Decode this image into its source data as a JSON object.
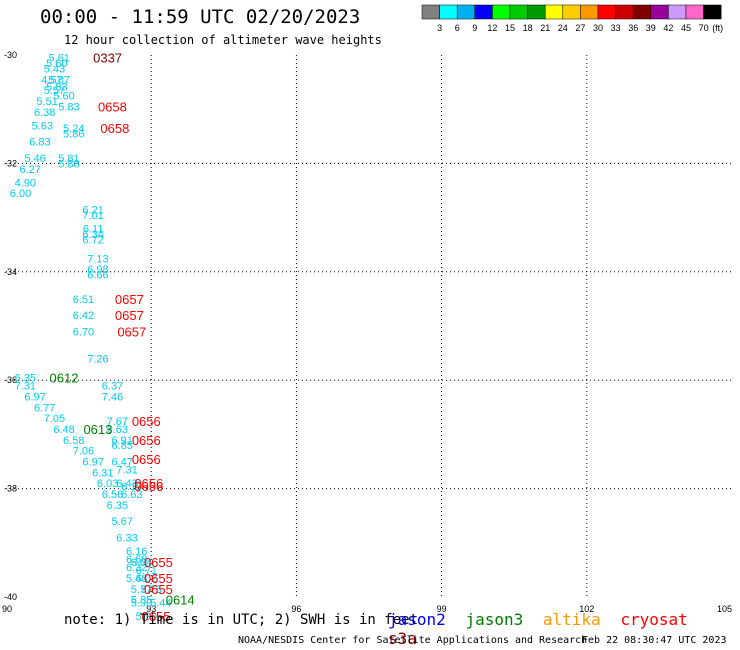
{
  "header": {
    "title": "00:00 - 11:59 UTC 02/20/2023",
    "subtitle": "12 hour collection of altimeter wave heights"
  },
  "colorbar": {
    "ticks": [
      "3",
      "6",
      "9",
      "12",
      "15",
      "18",
      "21",
      "24",
      "27",
      "30",
      "33",
      "36",
      "39",
      "42",
      "45",
      "70"
    ],
    "unit": "(ft)",
    "colors": [
      "#808080",
      "#00ffff",
      "#00b0f0",
      "#0000ff",
      "#00ff00",
      "#00cc00",
      "#009900",
      "#ffff00",
      "#ffcc00",
      "#ff9900",
      "#ff0000",
      "#cc0000",
      "#800000",
      "#990099",
      "#cc99ff",
      "#ff66cc",
      "#000000"
    ]
  },
  "footer": {
    "note": "note: 1) Time is in UTC; 2) SWH is in feet",
    "legend": [
      {
        "name": "jason2",
        "color": "#0000ff"
      },
      {
        "name": "jason3",
        "color": "#008000"
      },
      {
        "name": "altika",
        "color": "#ff9900"
      },
      {
        "name": "cryosat",
        "color": "#ff0000"
      },
      {
        "name": "s3a",
        "color": "#800000"
      }
    ],
    "credit": "NOAA/NESDIS Center for Satellite Applications and Research",
    "timestamp": "Feb 22 08:30:47 UTC 2023"
  },
  "chart_data": {
    "type": "scatter",
    "title": "00:00 - 11:59 UTC 02/20/2023",
    "xlim": [
      90,
      105
    ],
    "ylim": [
      -40,
      -30
    ],
    "x_ticks": [
      90,
      93,
      96,
      99,
      102,
      105
    ],
    "y_ticks": [
      -30,
      -32,
      -34,
      -36,
      -38,
      -40
    ],
    "grid": true,
    "swh_points": [
      {
        "x": 91.1,
        "y": -30.05,
        "label": "5.61"
      },
      {
        "x": 91.05,
        "y": -30.15,
        "label": "5.60"
      },
      {
        "x": 91.0,
        "y": -30.25,
        "label": "5.43"
      },
      {
        "x": 90.95,
        "y": -30.45,
        "label": "4.57"
      },
      {
        "x": 91.1,
        "y": -30.45,
        "label": "5.87"
      },
      {
        "x": 91.05,
        "y": -30.58,
        "label": "5.83"
      },
      {
        "x": 91.0,
        "y": -30.65,
        "label": "5.57"
      },
      {
        "x": 91.2,
        "y": -30.75,
        "label": "5.60"
      },
      {
        "x": 90.85,
        "y": -30.85,
        "label": "5.51"
      },
      {
        "x": 91.3,
        "y": -30.95,
        "label": "5.83"
      },
      {
        "x": 90.8,
        "y": -31.05,
        "label": "6.38"
      },
      {
        "x": 90.75,
        "y": -31.3,
        "label": "5.63"
      },
      {
        "x": 91.4,
        "y": -31.35,
        "label": "5.24"
      },
      {
        "x": 91.4,
        "y": -31.45,
        "label": "5.86"
      },
      {
        "x": 90.7,
        "y": -31.6,
        "label": "6.83"
      },
      {
        "x": 90.6,
        "y": -31.9,
        "label": "5.46"
      },
      {
        "x": 91.3,
        "y": -31.9,
        "label": "5.81"
      },
      {
        "x": 91.3,
        "y": -32.0,
        "label": "5.88"
      },
      {
        "x": 90.5,
        "y": -32.1,
        "label": "6.27"
      },
      {
        "x": 90.4,
        "y": -32.35,
        "label": "4.90"
      },
      {
        "x": 90.3,
        "y": -32.55,
        "label": "6.00"
      },
      {
        "x": 91.8,
        "y": -32.85,
        "label": "6.21"
      },
      {
        "x": 91.8,
        "y": -32.95,
        "label": "7.01"
      },
      {
        "x": 91.8,
        "y": -33.2,
        "label": "6.11"
      },
      {
        "x": 91.8,
        "y": -33.3,
        "label": "6.34"
      },
      {
        "x": 91.8,
        "y": -33.4,
        "label": "6.72"
      },
      {
        "x": 91.9,
        "y": -33.75,
        "label": "7.13"
      },
      {
        "x": 91.9,
        "y": -33.95,
        "label": "6.98"
      },
      {
        "x": 91.9,
        "y": -34.05,
        "label": "6.66"
      },
      {
        "x": 91.6,
        "y": -34.5,
        "label": "6.51"
      },
      {
        "x": 91.6,
        "y": -34.8,
        "label": "6.42"
      },
      {
        "x": 91.6,
        "y": -35.1,
        "label": "6.70"
      },
      {
        "x": 91.9,
        "y": -35.6,
        "label": "7.26"
      },
      {
        "x": 90.4,
        "y": -35.95,
        "label": "6.35"
      },
      {
        "x": 90.4,
        "y": -36.1,
        "label": "7.31"
      },
      {
        "x": 92.2,
        "y": -36.1,
        "label": "6.37"
      },
      {
        "x": 90.6,
        "y": -36.3,
        "label": "6.97"
      },
      {
        "x": 92.2,
        "y": -36.3,
        "label": "7.46"
      },
      {
        "x": 90.8,
        "y": -36.5,
        "label": "6.77"
      },
      {
        "x": 91.0,
        "y": -36.7,
        "label": "7.05"
      },
      {
        "x": 92.3,
        "y": -36.75,
        "label": "7.67"
      },
      {
        "x": 91.2,
        "y": -36.9,
        "label": "6.48"
      },
      {
        "x": 92.3,
        "y": -36.9,
        "label": "6.63"
      },
      {
        "x": 91.4,
        "y": -37.1,
        "label": "6.58"
      },
      {
        "x": 92.4,
        "y": -37.1,
        "label": "6.91"
      },
      {
        "x": 92.4,
        "y": -37.2,
        "label": "6.85"
      },
      {
        "x": 91.6,
        "y": -37.3,
        "label": "7.06"
      },
      {
        "x": 91.8,
        "y": -37.5,
        "label": "6.97"
      },
      {
        "x": 92.4,
        "y": -37.5,
        "label": "6.47"
      },
      {
        "x": 92.5,
        "y": -37.65,
        "label": "7.31"
      },
      {
        "x": 92.0,
        "y": -37.7,
        "label": "6.31"
      },
      {
        "x": 92.1,
        "y": -37.9,
        "label": "6.03"
      },
      {
        "x": 92.5,
        "y": -37.9,
        "label": "6.43"
      },
      {
        "x": 92.6,
        "y": -37.95,
        "label": "6.19"
      },
      {
        "x": 92.2,
        "y": -38.1,
        "label": "6.56"
      },
      {
        "x": 92.6,
        "y": -38.1,
        "label": "6.63"
      },
      {
        "x": 92.3,
        "y": -38.3,
        "label": "6.35"
      },
      {
        "x": 92.4,
        "y": -38.6,
        "label": "5.67"
      },
      {
        "x": 92.5,
        "y": -38.9,
        "label": "6.33"
      },
      {
        "x": 92.7,
        "y": -39.15,
        "label": "6.16"
      },
      {
        "x": 92.7,
        "y": -39.3,
        "label": "6.68"
      },
      {
        "x": 92.8,
        "y": -39.35,
        "label": "6.04"
      },
      {
        "x": 92.7,
        "y": -39.45,
        "label": "6.32"
      },
      {
        "x": 92.9,
        "y": -39.5,
        "label": "6.71"
      },
      {
        "x": 92.7,
        "y": -39.65,
        "label": "5.48"
      },
      {
        "x": 92.9,
        "y": -39.65,
        "label": "6.02"
      },
      {
        "x": 92.8,
        "y": -39.85,
        "label": "5.77"
      },
      {
        "x": 93.0,
        "y": -39.85,
        "label": "5.75"
      },
      {
        "x": 92.8,
        "y": -40.05,
        "label": "5.85"
      },
      {
        "x": 92.8,
        "y": -40.1,
        "label": "5.90"
      },
      {
        "x": 93.2,
        "y": -40.1,
        "label": "5.44"
      },
      {
        "x": 92.9,
        "y": -40.35,
        "label": "5.90"
      }
    ],
    "pass_labels": [
      {
        "x": 91.8,
        "y": -30.05,
        "text": "0337",
        "satellite": "s3a"
      },
      {
        "x": 91.9,
        "y": -30.95,
        "text": "0658",
        "satellite": "cryosat"
      },
      {
        "x": 91.95,
        "y": -31.35,
        "text": "0658",
        "satellite": "cryosat"
      },
      {
        "x": 92.25,
        "y": -34.5,
        "text": "0657",
        "satellite": "cryosat"
      },
      {
        "x": 92.25,
        "y": -34.8,
        "text": "0657",
        "satellite": "cryosat"
      },
      {
        "x": 92.3,
        "y": -35.1,
        "text": "0657",
        "satellite": "cryosat"
      },
      {
        "x": 90.9,
        "y": -35.95,
        "text": "0612",
        "satellite": "jason3"
      },
      {
        "x": 92.6,
        "y": -36.75,
        "text": "0656",
        "satellite": "cryosat"
      },
      {
        "x": 91.6,
        "y": -36.9,
        "text": "0613",
        "satellite": "jason3"
      },
      {
        "x": 92.6,
        "y": -37.1,
        "text": "0656",
        "satellite": "cryosat"
      },
      {
        "x": 92.6,
        "y": -37.45,
        "text": "0656",
        "satellite": "cryosat"
      },
      {
        "x": 92.65,
        "y": -37.9,
        "text": "0656",
        "satellite": "cryosat"
      },
      {
        "x": 92.65,
        "y": -37.95,
        "text": "0656",
        "satellite": "cryosat"
      },
      {
        "x": 92.85,
        "y": -39.35,
        "text": "0655",
        "satellite": "cryosat"
      },
      {
        "x": 92.85,
        "y": -39.65,
        "text": "0655",
        "satellite": "cryosat"
      },
      {
        "x": 92.85,
        "y": -39.85,
        "text": "0655",
        "satellite": "cryosat"
      },
      {
        "x": 93.3,
        "y": -40.05,
        "text": "0614",
        "satellite": "jason3"
      },
      {
        "x": 92.8,
        "y": -40.35,
        "text": "0655",
        "satellite": "cryosat"
      }
    ]
  }
}
